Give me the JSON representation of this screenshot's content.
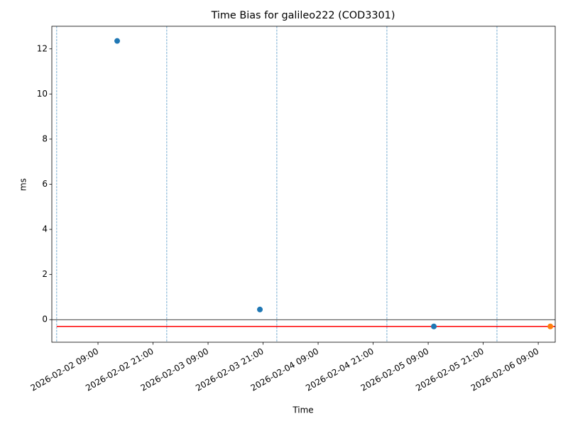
{
  "chart_data": {
    "type": "scatter",
    "title": "Time Bias for galileo222 (COD3301)",
    "x_label": "Time",
    "y_label": "ms",
    "series": [
      {
        "color": "#1f77b4",
        "x": [
          "2026-02-02 13:11",
          "2026-02-03 20:18",
          "2026-02-05 10:14"
        ],
        "values": [
          12.35,
          0.45,
          -0.3
        ]
      },
      {
        "color": "#ff7f0e",
        "x": [
          "2026-02-06 11:38"
        ],
        "values": [
          -0.3
        ]
      }
    ],
    "xlim": [
      "2026-02-01 22:56",
      "2026-02-06 12:42"
    ],
    "xticks": [
      "2026-02-02 09:00",
      "2026-02-02 21:00",
      "2026-02-03 09:00",
      "2026-02-03 21:00",
      "2026-02-04 09:00",
      "2026-02-04 21:00",
      "2026-02-05 09:00",
      "2026-02-05 21:00",
      "2026-02-06 09:00"
    ],
    "ylim": [
      -1,
      13
    ],
    "yticks": [
      0,
      2,
      4,
      6,
      8,
      10,
      12
    ],
    "vlines": {
      "color": "#1f77b4",
      "x": [
        "2026-02-02 00:00",
        "2026-02-03 00:00",
        "2026-02-04 00:00",
        "2026-02-05 00:00",
        "2026-02-06 00:00"
      ]
    },
    "hlines": [
      {
        "value": 0,
        "color": "#000000"
      },
      {
        "value": -0.3,
        "color": "#ff0000"
      }
    ]
  }
}
